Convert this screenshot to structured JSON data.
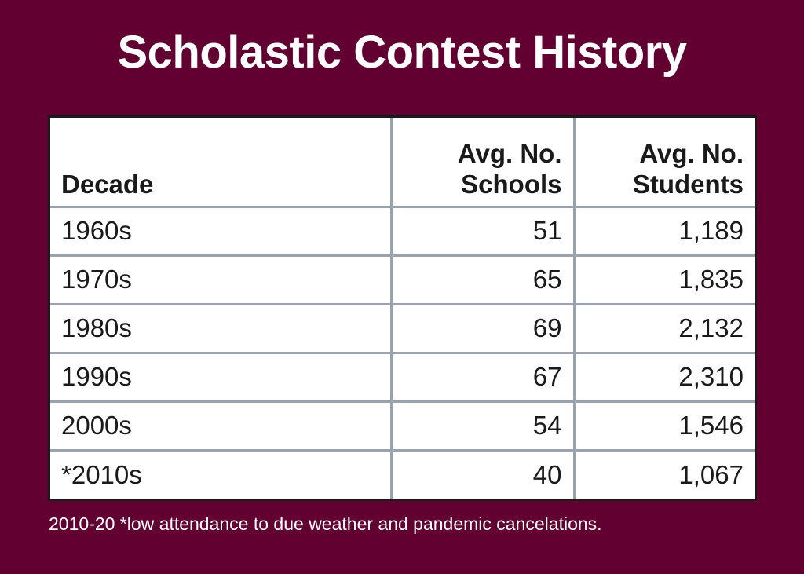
{
  "colors": {
    "background": "#630032",
    "text_light": "#ffffff",
    "grid": "#9aa3ad",
    "frame": "#1a1a1a"
  },
  "chart_data": {
    "type": "table",
    "title": "Scholastic Contest History",
    "columns": [
      "Decade",
      "Avg. No. Schools",
      "Avg. No. Students"
    ],
    "rows": [
      [
        "1960s",
        "51",
        "1,189"
      ],
      [
        "1970s",
        "65",
        "1,835"
      ],
      [
        "1980s",
        "69",
        "2,132"
      ],
      [
        "1990s",
        "67",
        "2,310"
      ],
      [
        "2000s",
        "54",
        "1,546"
      ],
      [
        "*2010s",
        "40",
        "1,067"
      ]
    ],
    "footnote": "2010-20 *low attendance to due weather and pandemic cancelations."
  }
}
